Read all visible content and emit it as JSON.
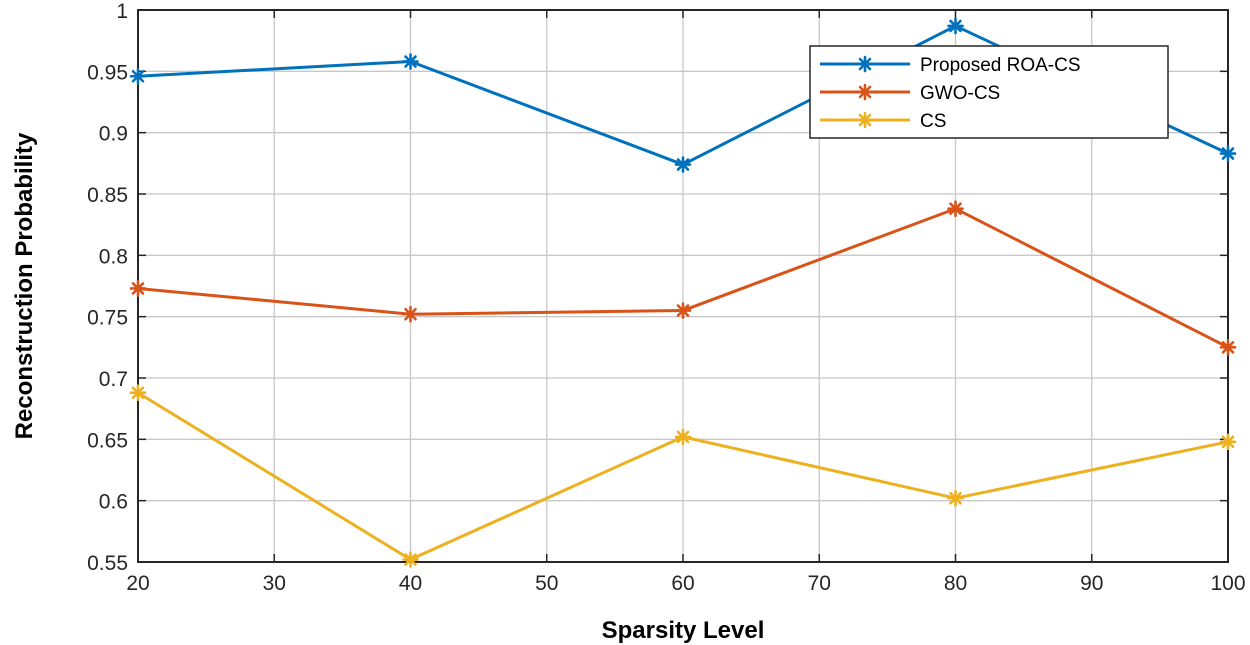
{
  "chart_data": {
    "type": "line",
    "title": "",
    "xlabel": "Sparsity Level",
    "ylabel": "Reconstruction Probability",
    "x": [
      20,
      40,
      60,
      80,
      100
    ],
    "xlim": [
      20,
      100
    ],
    "ylim": [
      0.55,
      1
    ],
    "xticks": [
      20,
      30,
      40,
      50,
      60,
      70,
      80,
      90,
      100
    ],
    "yticks": [
      0.55,
      0.6,
      0.65,
      0.7,
      0.75,
      0.8,
      0.85,
      0.9,
      0.95,
      1
    ],
    "xtick_labels": [
      "20",
      "30",
      "40",
      "50",
      "60",
      "70",
      "80",
      "90",
      "100"
    ],
    "ytick_labels": [
      "0.55",
      "0.6",
      "0.65",
      "0.7",
      "0.75",
      "0.8",
      "0.85",
      "0.9",
      "0.95",
      "1"
    ],
    "grid": true,
    "legend_position": "top-right",
    "series": [
      {
        "name": "Proposed ROA-CS",
        "color": "#0072BD",
        "marker": "asterisk",
        "values": [
          0.946,
          0.958,
          0.874,
          0.987,
          0.883
        ]
      },
      {
        "name": "GWO-CS",
        "color": "#D95319",
        "marker": "asterisk",
        "values": [
          0.773,
          0.752,
          0.755,
          0.838,
          0.725
        ]
      },
      {
        "name": "CS",
        "color": "#EDB120",
        "marker": "asterisk",
        "values": [
          0.688,
          0.552,
          0.652,
          0.602,
          0.648
        ]
      }
    ]
  }
}
